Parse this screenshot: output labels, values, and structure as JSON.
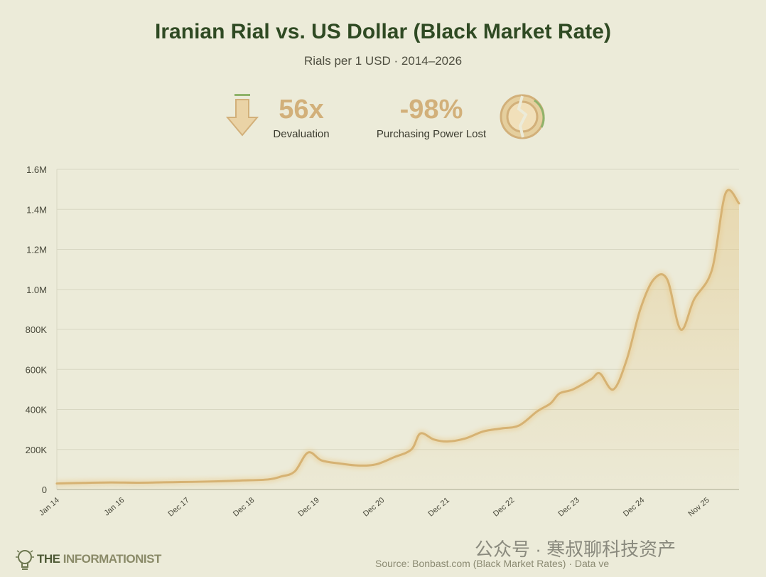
{
  "header": {
    "title": "Iranian Rial vs. US Dollar (Black Market Rate)",
    "subtitle": "Rials per 1 USD · 2014–2026"
  },
  "stats": [
    {
      "value": "56x",
      "label": "Devaluation",
      "icon": "down-arrow-icon"
    },
    {
      "value": "-98%",
      "label": "Purchasing Power Lost",
      "icon": "broken-coin-icon"
    }
  ],
  "chart_data": {
    "type": "area",
    "title": "Iranian Rial vs. US Dollar (Black Market Rate)",
    "ylabel": "",
    "xlabel": "",
    "ylim": [
      0,
      1600000
    ],
    "y_ticks": [
      0,
      200000,
      400000,
      600000,
      800000,
      1000000,
      1200000,
      1400000,
      1600000
    ],
    "y_tick_labels": [
      "0",
      "200K",
      "400K",
      "600K",
      "800K",
      "1.0M",
      "1.2M",
      "1.4M",
      "1.6M"
    ],
    "x_tick_labels": [
      "Jan 14",
      "Jan 16",
      "Dec 17",
      "Dec 18",
      "Dec 19",
      "Dec 20",
      "Dec 21",
      "Dec 22",
      "Dec 23",
      "Dec 24",
      "Nov 25"
    ],
    "grid": true,
    "line_color": "#d9b87c",
    "series": [
      {
        "name": "",
        "points": [
          [
            "2014-01",
            30000
          ],
          [
            "2014-07",
            33000
          ],
          [
            "2015-01",
            35000
          ],
          [
            "2015-07",
            34000
          ],
          [
            "2016-01",
            36000
          ],
          [
            "2016-07",
            38000
          ],
          [
            "2017-01",
            41000
          ],
          [
            "2017-06",
            45000
          ],
          [
            "2017-12",
            50000
          ],
          [
            "2018-03",
            65000
          ],
          [
            "2018-06",
            90000
          ],
          [
            "2018-09",
            185000
          ],
          [
            "2018-12",
            145000
          ],
          [
            "2019-04",
            130000
          ],
          [
            "2019-08",
            120000
          ],
          [
            "2019-12",
            125000
          ],
          [
            "2020-04",
            160000
          ],
          [
            "2020-08",
            200000
          ],
          [
            "2020-10",
            280000
          ],
          [
            "2021-01",
            250000
          ],
          [
            "2021-04",
            240000
          ],
          [
            "2021-08",
            255000
          ],
          [
            "2021-12",
            290000
          ],
          [
            "2022-04",
            305000
          ],
          [
            "2022-08",
            320000
          ],
          [
            "2022-12",
            390000
          ],
          [
            "2023-03",
            430000
          ],
          [
            "2023-05",
            480000
          ],
          [
            "2023-08",
            500000
          ],
          [
            "2023-12",
            550000
          ],
          [
            "2024-02",
            580000
          ],
          [
            "2024-05",
            500000
          ],
          [
            "2024-08",
            650000
          ],
          [
            "2024-11",
            900000
          ],
          [
            "2025-02",
            1050000
          ],
          [
            "2025-05",
            1050000
          ],
          [
            "2025-08",
            800000
          ],
          [
            "2025-11",
            950000
          ],
          [
            "2026-03",
            1100000
          ],
          [
            "2026-06",
            1480000
          ],
          [
            "2026-09",
            1430000
          ]
        ]
      }
    ]
  },
  "footer": {
    "logo_brand": "THE ",
    "logo_brand_light": "INFORMATIONIST",
    "source": "Source: Bonbast.com (Black Market Rates) · Data ve",
    "watermark": "公众号 · 寒叔聊科技资产"
  }
}
